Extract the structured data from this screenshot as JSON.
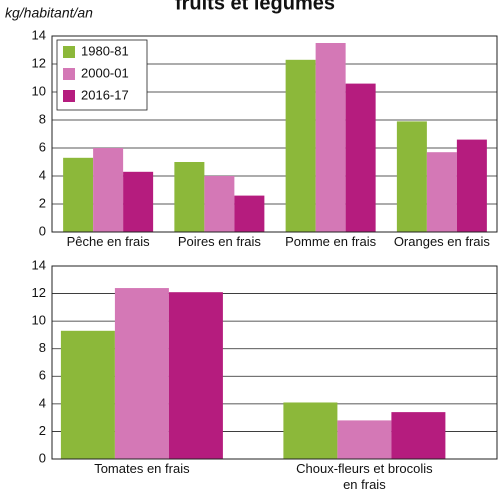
{
  "title": "fruits et légumes",
  "y_label": "kg/habitant/an",
  "chart_data": [
    {
      "type": "bar",
      "categories": [
        "Pêche en frais",
        "Poires en frais",
        "Pomme en frais",
        "Oranges en frais"
      ],
      "series": [
        {
          "name": "1980-81",
          "color": "#8cb83a",
          "values": [
            5.3,
            5.0,
            12.3,
            7.9
          ]
        },
        {
          "name": "2000-01",
          "color": "#d478b6",
          "values": [
            6.0,
            4.0,
            13.5,
            5.7
          ]
        },
        {
          "name": "2016-17",
          "color": "#b51c7e",
          "values": [
            4.3,
            2.6,
            10.6,
            6.6
          ]
        }
      ],
      "ylim": [
        0,
        14
      ],
      "yticks": [
        0,
        2,
        4,
        6,
        8,
        10,
        12,
        14
      ],
      "grid": true,
      "legend": "upper left"
    },
    {
      "type": "bar",
      "categories": [
        "Tomates en frais",
        "Choux-fleurs et brocolis en frais"
      ],
      "series": [
        {
          "name": "1980-81",
          "color": "#8cb83a",
          "values": [
            9.3,
            4.1
          ]
        },
        {
          "name": "2000-01",
          "color": "#d478b6",
          "values": [
            12.4,
            2.8
          ]
        },
        {
          "name": "2016-17",
          "color": "#b51c7e",
          "values": [
            12.1,
            3.4
          ]
        }
      ],
      "ylim": [
        0,
        14
      ],
      "yticks": [
        0,
        2,
        4,
        6,
        8,
        10,
        12,
        14
      ],
      "grid": true
    }
  ]
}
